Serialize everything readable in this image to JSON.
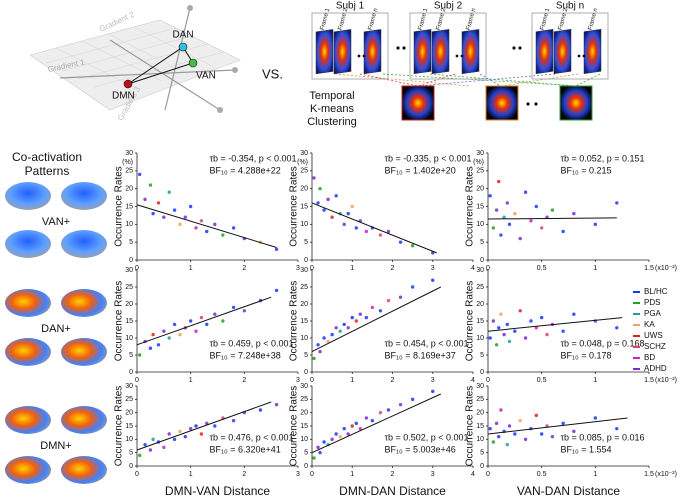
{
  "figure": {
    "gradient_diagram": {
      "axes": [
        "Gradient 1",
        "Gradient 2",
        "Gradient 3"
      ],
      "nodes": [
        "DAN",
        "VAN",
        "DMN"
      ]
    },
    "vs": "VS.",
    "subjects": [
      {
        "label": "Subj 1",
        "frames": [
          "Frame 1",
          "Frame 2",
          "Frame n"
        ]
      },
      {
        "label": "Subj 2",
        "frames": [
          "Frame 1",
          "Frame 2",
          "Frame n"
        ]
      },
      {
        "label": "Subj n",
        "frames": [
          "Frame 1",
          "Frame 2",
          "Frame n"
        ]
      }
    ],
    "clustering": [
      "Temporal",
      "K-means",
      "Clustering"
    ],
    "cap_title": [
      "Co-activation",
      "Patterns"
    ],
    "caps": [
      "VAN+",
      "DAN+",
      "DMN+"
    ],
    "legend": [
      {
        "name": "BL/HC",
        "color": "#1a35ff"
      },
      {
        "name": "PDS",
        "color": "#22a022"
      },
      {
        "name": "PGA",
        "color": "#1aa0a0"
      },
      {
        "name": "KA",
        "color": "#f0a060"
      },
      {
        "name": "UWS",
        "color": "#e02020"
      },
      {
        "name": "SCHZ",
        "color": "#e0406a"
      },
      {
        "name": "BD",
        "color": "#d020c0"
      },
      {
        "name": "ADHD",
        "color": "#7a2ad0"
      }
    ]
  },
  "chart_data": [
    {
      "type": "scatter",
      "ylabel": "Occurrence Rates",
      "yunit": "(%)",
      "xlim": [
        0,
        3
      ],
      "xticks": [
        0,
        1,
        2,
        3
      ],
      "ylim": [
        0,
        30
      ],
      "yticks": [
        0,
        5,
        10,
        15,
        20,
        25,
        30
      ],
      "x": [
        0.05,
        0.15,
        0.25,
        0.3,
        0.4,
        0.5,
        0.6,
        0.7,
        0.8,
        0.9,
        1.0,
        1.1,
        1.2,
        1.3,
        1.45,
        1.6,
        1.8,
        2.0,
        2.3,
        2.6
      ],
      "values": [
        24,
        17,
        21,
        13,
        16,
        12,
        19,
        14,
        10,
        12,
        15,
        9,
        11,
        8,
        10,
        7,
        9,
        6,
        5,
        3
      ],
      "groups": [
        0,
        7,
        1,
        0,
        4,
        7,
        2,
        0,
        3,
        7,
        0,
        6,
        5,
        0,
        7,
        1,
        0,
        7,
        3,
        0
      ],
      "fit": {
        "x": [
          0,
          2.6
        ],
        "y": [
          15.5,
          3.5
        ]
      },
      "stats": [
        "τb = -0.354, p < 0.001",
        "BF₁₀ = 4.288e+22"
      ]
    },
    {
      "type": "scatter",
      "ylabel": "Occurrence Rates",
      "yunit": "(%)",
      "xlim": [
        0,
        4
      ],
      "xticks": [
        0,
        1,
        2,
        3,
        4
      ],
      "ylim": [
        0,
        30
      ],
      "yticks": [
        0,
        5,
        10,
        15,
        20,
        25,
        30
      ],
      "x": [
        0.05,
        0.15,
        0.2,
        0.3,
        0.4,
        0.5,
        0.6,
        0.7,
        0.8,
        0.9,
        1.0,
        1.1,
        1.2,
        1.35,
        1.5,
        1.7,
        1.9,
        2.2,
        2.5,
        3.0
      ],
      "values": [
        23,
        16,
        20,
        14,
        17,
        12,
        18,
        13,
        10,
        13,
        15,
        9,
        11,
        8,
        9,
        7,
        8,
        5,
        4,
        2
      ],
      "groups": [
        7,
        0,
        1,
        0,
        7,
        4,
        0,
        2,
        7,
        0,
        3,
        0,
        7,
        6,
        0,
        5,
        7,
        0,
        1,
        0
      ],
      "fit": {
        "x": [
          0,
          3.1
        ],
        "y": [
          16,
          2
        ]
      },
      "stats": [
        "τb = -0.335, p < 0.001",
        "BF₁₀ = 1.402e+20"
      ]
    },
    {
      "type": "scatter",
      "ylabel": "Occurrence Rates",
      "yunit": "(%)",
      "xunit": "(x10⁻²)",
      "xlim": [
        0,
        1.5
      ],
      "xticks": [
        0,
        0.5,
        1,
        1.5
      ],
      "ylim": [
        0,
        30
      ],
      "yticks": [
        0,
        5,
        10,
        15,
        20,
        25,
        30
      ],
      "x": [
        0.02,
        0.05,
        0.08,
        0.1,
        0.12,
        0.15,
        0.18,
        0.2,
        0.25,
        0.3,
        0.35,
        0.4,
        0.45,
        0.5,
        0.55,
        0.6,
        0.7,
        0.8,
        1.0,
        1.2
      ],
      "values": [
        18,
        9,
        14,
        22,
        7,
        12,
        16,
        10,
        13,
        6,
        19,
        11,
        15,
        9,
        12,
        14,
        8,
        13,
        10,
        16
      ],
      "groups": [
        0,
        1,
        7,
        4,
        0,
        2,
        7,
        0,
        3,
        7,
        0,
        6,
        0,
        5,
        7,
        1,
        0,
        7,
        0,
        0
      ],
      "fit": {
        "x": [
          0,
          1.2
        ],
        "y": [
          11.5,
          11.8
        ]
      },
      "stats": [
        "τb = 0.052, p = 0.151",
        "BF₁₀ = 0.215"
      ]
    },
    {
      "type": "scatter",
      "ylabel": "Occurrence Rates",
      "xlim": [
        0,
        3
      ],
      "xticks": [
        0,
        1,
        2,
        3
      ],
      "ylim": [
        0,
        30
      ],
      "yticks": [
        0,
        5,
        10,
        15,
        20,
        25,
        30
      ],
      "x": [
        0.05,
        0.15,
        0.25,
        0.3,
        0.4,
        0.5,
        0.6,
        0.7,
        0.8,
        0.9,
        1.0,
        1.1,
        1.2,
        1.3,
        1.45,
        1.6,
        1.8,
        2.0,
        2.3,
        2.6
      ],
      "values": [
        5,
        9,
        7,
        11,
        8,
        12,
        10,
        14,
        11,
        13,
        15,
        12,
        16,
        14,
        17,
        15,
        19,
        18,
        21,
        24
      ],
      "groups": [
        1,
        7,
        0,
        4,
        0,
        7,
        2,
        0,
        3,
        7,
        0,
        6,
        5,
        0,
        7,
        1,
        0,
        7,
        0,
        0
      ],
      "fit": {
        "x": [
          0,
          2.5
        ],
        "y": [
          8,
          22
        ]
      },
      "stats": [
        "τb = 0.459, p < 0.001",
        "BF₁₀ = 7.248e+38"
      ]
    },
    {
      "type": "scatter",
      "ylabel": "Occurrence Rates",
      "xlim": [
        0,
        4
      ],
      "xticks": [
        0,
        1,
        2,
        3,
        4
      ],
      "ylim": [
        0,
        30
      ],
      "yticks": [
        0,
        5,
        10,
        15,
        20,
        25,
        30
      ],
      "x": [
        0.05,
        0.15,
        0.2,
        0.3,
        0.4,
        0.5,
        0.6,
        0.7,
        0.8,
        0.9,
        1.0,
        1.1,
        1.2,
        1.35,
        1.5,
        1.7,
        1.9,
        2.2,
        2.5,
        3.0
      ],
      "values": [
        4,
        8,
        6,
        10,
        9,
        11,
        13,
        12,
        14,
        13,
        16,
        15,
        17,
        16,
        19,
        18,
        21,
        22,
        25,
        27
      ],
      "groups": [
        1,
        0,
        7,
        0,
        3,
        0,
        7,
        2,
        0,
        7,
        0,
        4,
        7,
        0,
        6,
        0,
        5,
        7,
        0,
        0
      ],
      "fit": {
        "x": [
          0,
          3.2
        ],
        "y": [
          6,
          25
        ]
      },
      "stats": [
        "τb = 0.454, p < 0.001",
        "BF₁₀ = 8.169e+37"
      ]
    },
    {
      "type": "scatter",
      "ylabel": "Occurrence Rates",
      "xunit": "(x10⁻²)",
      "xlim": [
        0,
        1.5
      ],
      "xticks": [
        0,
        0.5,
        1,
        1.5
      ],
      "ylim": [
        0,
        30
      ],
      "yticks": [
        0,
        5,
        10,
        15,
        20,
        25,
        30
      ],
      "x": [
        0.02,
        0.05,
        0.08,
        0.1,
        0.12,
        0.15,
        0.18,
        0.2,
        0.25,
        0.3,
        0.35,
        0.4,
        0.45,
        0.5,
        0.55,
        0.6,
        0.7,
        0.8,
        1.0,
        1.2
      ],
      "values": [
        10,
        15,
        8,
        13,
        17,
        11,
        14,
        9,
        12,
        18,
        10,
        15,
        13,
        16,
        11,
        14,
        12,
        17,
        15,
        13
      ],
      "groups": [
        0,
        7,
        1,
        0,
        3,
        7,
        0,
        2,
        0,
        4,
        7,
        0,
        6,
        0,
        5,
        7,
        0,
        0,
        7,
        0
      ],
      "fit": {
        "x": [
          0,
          1.25
        ],
        "y": [
          12,
          16
        ]
      },
      "stats": [
        "τb = 0.048, p = 0.168",
        "BF₁₀ = 0.178"
      ]
    },
    {
      "type": "scatter",
      "ylabel": "Occurrence Rates",
      "xlabel": "DMN-VAN Distance",
      "xlim": [
        0,
        3
      ],
      "xticks": [
        0,
        1,
        2,
        3
      ],
      "ylim": [
        0,
        30
      ],
      "yticks": [
        0,
        5,
        10,
        15,
        20,
        25,
        30
      ],
      "x": [
        0.05,
        0.15,
        0.25,
        0.3,
        0.4,
        0.5,
        0.6,
        0.7,
        0.8,
        0.9,
        1.0,
        1.1,
        1.2,
        1.3,
        1.45,
        1.6,
        1.8,
        2.0,
        2.3,
        2.6
      ],
      "values": [
        4,
        8,
        6,
        10,
        9,
        7,
        12,
        10,
        13,
        11,
        14,
        15,
        12,
        16,
        15,
        18,
        17,
        20,
        21,
        23
      ],
      "groups": [
        1,
        0,
        7,
        2,
        0,
        6,
        7,
        0,
        3,
        0,
        7,
        0,
        4,
        7,
        0,
        5,
        0,
        7,
        0,
        7
      ],
      "fit": {
        "x": [
          0,
          2.5
        ],
        "y": [
          6,
          24
        ]
      },
      "stats": [
        "τb = 0.476, p < 0.001",
        "BF₁₀ = 6.320e+41"
      ]
    },
    {
      "type": "scatter",
      "ylabel": "Occurrence Rates",
      "xlabel": "DMN-DAN Distance",
      "xlim": [
        0,
        4
      ],
      "xticks": [
        0,
        1,
        2,
        3,
        4
      ],
      "ylim": [
        0,
        30
      ],
      "yticks": [
        0,
        5,
        10,
        15,
        20,
        25,
        30
      ],
      "x": [
        0.05,
        0.15,
        0.2,
        0.3,
        0.4,
        0.5,
        0.6,
        0.7,
        0.8,
        0.9,
        1.0,
        1.1,
        1.2,
        1.35,
        1.5,
        1.7,
        1.9,
        2.2,
        2.5,
        3.0
      ],
      "values": [
        3,
        7,
        5,
        9,
        8,
        10,
        12,
        11,
        14,
        12,
        15,
        16,
        14,
        18,
        17,
        20,
        21,
        23,
        25,
        28
      ],
      "groups": [
        1,
        7,
        0,
        0,
        2,
        7,
        0,
        3,
        0,
        7,
        4,
        0,
        6,
        7,
        0,
        5,
        0,
        7,
        0,
        0
      ],
      "fit": {
        "x": [
          0,
          3.2
        ],
        "y": [
          5,
          27
        ]
      },
      "stats": [
        "τb = 0.502, p < 0.001",
        "BF₁₀ = 5.003e+46"
      ]
    },
    {
      "type": "scatter",
      "ylabel": "Occurrence Rates",
      "xlabel": "VAN-DAN Distance",
      "xunit": "(x10⁻²)",
      "xlim": [
        0,
        1.5
      ],
      "xticks": [
        0,
        0.5,
        1,
        1.5
      ],
      "ylim": [
        0,
        30
      ],
      "yticks": [
        0,
        5,
        10,
        15,
        20,
        25,
        30
      ],
      "x": [
        0.02,
        0.05,
        0.08,
        0.1,
        0.12,
        0.15,
        0.18,
        0.2,
        0.25,
        0.3,
        0.35,
        0.4,
        0.45,
        0.5,
        0.55,
        0.6,
        0.7,
        0.8,
        1.0,
        1.2
      ],
      "values": [
        14,
        9,
        16,
        11,
        21,
        13,
        8,
        15,
        12,
        17,
        10,
        14,
        19,
        12,
        15,
        11,
        16,
        13,
        18,
        14
      ],
      "groups": [
        0,
        1,
        7,
        0,
        6,
        0,
        2,
        7,
        0,
        3,
        7,
        0,
        4,
        0,
        5,
        7,
        0,
        7,
        0,
        0
      ],
      "fit": {
        "x": [
          0,
          1.3
        ],
        "y": [
          12,
          18
        ]
      },
      "stats": [
        "τb = 0.085, p = 0.016",
        "BF₁₀ = 1.554"
      ]
    }
  ]
}
